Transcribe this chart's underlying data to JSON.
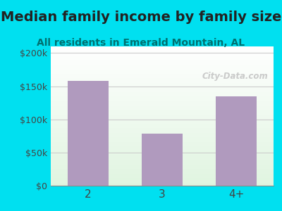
{
  "title": "Median family income by family size",
  "subtitle": "All residents in Emerald Mountain, AL",
  "categories": [
    "2",
    "3",
    "4+"
  ],
  "values": [
    158000,
    78000,
    135000
  ],
  "bar_color": "#b09abe",
  "background_outer": "#00e0f0",
  "yticks": [
    0,
    50000,
    100000,
    150000,
    200000
  ],
  "ytick_labels": [
    "$0",
    "$50k",
    "$100k",
    "$150k",
    "$200k"
  ],
  "ylim": [
    0,
    210000
  ],
  "title_fontsize": 14,
  "subtitle_fontsize": 10,
  "title_color": "#222222",
  "subtitle_color": "#007070",
  "watermark": "City-Data.com",
  "watermark_color": "#bbbbbb"
}
